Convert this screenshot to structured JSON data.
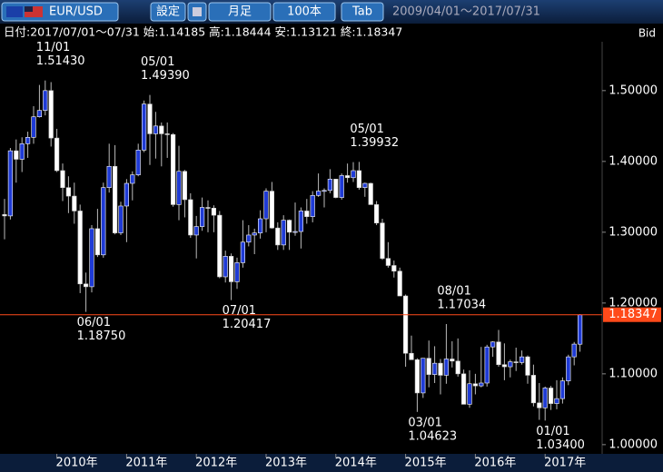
{
  "header": {
    "symbol": "EUR/USD",
    "buttons": [
      "設定",
      "月足",
      "100本",
      "Tab"
    ],
    "range": "2009/04/01～2017/07/31"
  },
  "info": "日付:2017/07/01～07/31 始:1.14185 高:1.18444 安:1.13121 終:1.18347",
  "price_side": "Bid",
  "chart_data": {
    "type": "candlestick",
    "ylim": [
      0.987,
      1.569
    ],
    "yticks": [
      {
        "value": 1.0,
        "label": "1.00000"
      },
      {
        "value": 1.1,
        "label": "1.10000"
      },
      {
        "value": 1.2,
        "label": "1.20000"
      },
      {
        "value": 1.3,
        "label": "1.30000"
      },
      {
        "value": 1.4,
        "label": "1.40000"
      },
      {
        "value": 1.5,
        "label": "1.50000"
      }
    ],
    "xticks": [
      "2010年",
      "2011年",
      "2012年",
      "2013年",
      "2014年",
      "2015年",
      "2016年",
      "2017年"
    ],
    "up_color": "#1f3bd6",
    "down_color": "#ffffff",
    "last": {
      "value": 1.18347,
      "label": "1.18347",
      "color": "#ff4a1a"
    },
    "annotations": [
      {
        "text": "11/01",
        "value": 1.5143,
        "label": "1.51430",
        "at": "high"
      },
      {
        "text": "05/01",
        "value": 1.4939,
        "label": "1.49390",
        "at": "high"
      },
      {
        "text": "06/01",
        "value": 1.1875,
        "label": "1.18750",
        "at": "low"
      },
      {
        "text": "07/01",
        "value": 1.20417,
        "label": "1.20417",
        "at": "low"
      },
      {
        "text": "05/01",
        "value": 1.39932,
        "label": "1.39932",
        "at": "high"
      },
      {
        "text": "03/01",
        "value": 1.04623,
        "label": "1.04623",
        "at": "low"
      },
      {
        "text": "08/01",
        "value": 1.17034,
        "label": "1.17034",
        "at": "high"
      },
      {
        "text": "01/01",
        "value": 1.034,
        "label": "1.03400",
        "at": "low"
      }
    ],
    "ohlc": [
      [
        1.325,
        1.347,
        1.29,
        1.323
      ],
      [
        1.323,
        1.419,
        1.318,
        1.415
      ],
      [
        1.415,
        1.431,
        1.37,
        1.403
      ],
      [
        1.403,
        1.434,
        1.385,
        1.425
      ],
      [
        1.425,
        1.442,
        1.405,
        1.434
      ],
      [
        1.434,
        1.478,
        1.425,
        1.463
      ],
      [
        1.463,
        1.508,
        1.462,
        1.472
      ],
      [
        1.472,
        1.5143,
        1.465,
        1.5
      ],
      [
        1.5,
        1.512,
        1.421,
        1.433
      ],
      [
        1.433,
        1.446,
        1.385,
        1.387
      ],
      [
        1.387,
        1.397,
        1.344,
        1.363
      ],
      [
        1.363,
        1.379,
        1.327,
        1.351
      ],
      [
        1.351,
        1.37,
        1.312,
        1.33
      ],
      [
        1.33,
        1.339,
        1.214,
        1.227
      ],
      [
        1.227,
        1.243,
        1.1875,
        1.223
      ],
      [
        1.223,
        1.31,
        1.215,
        1.305
      ],
      [
        1.305,
        1.333,
        1.265,
        1.268
      ],
      [
        1.268,
        1.37,
        1.264,
        1.363
      ],
      [
        1.363,
        1.425,
        1.356,
        1.393
      ],
      [
        1.393,
        1.423,
        1.297,
        1.299
      ],
      [
        1.299,
        1.343,
        1.296,
        1.337
      ],
      [
        1.337,
        1.375,
        1.286,
        1.369
      ],
      [
        1.369,
        1.386,
        1.345,
        1.381
      ],
      [
        1.381,
        1.425,
        1.379,
        1.416
      ],
      [
        1.416,
        1.486,
        1.413,
        1.481
      ],
      [
        1.481,
        1.4939,
        1.395,
        1.439
      ],
      [
        1.439,
        1.47,
        1.404,
        1.45
      ],
      [
        1.45,
        1.455,
        1.393,
        1.439
      ],
      [
        1.439,
        1.455,
        1.405,
        1.438
      ],
      [
        1.438,
        1.44,
        1.336,
        1.339
      ],
      [
        1.339,
        1.422,
        1.317,
        1.386
      ],
      [
        1.386,
        1.388,
        1.321,
        1.346
      ],
      [
        1.346,
        1.355,
        1.292,
        1.296
      ],
      [
        1.296,
        1.323,
        1.263,
        1.308
      ],
      [
        1.308,
        1.349,
        1.302,
        1.335
      ],
      [
        1.335,
        1.345,
        1.3,
        1.334
      ],
      [
        1.334,
        1.338,
        1.3,
        1.324
      ],
      [
        1.324,
        1.33,
        1.235,
        1.237
      ],
      [
        1.237,
        1.274,
        1.229,
        1.266
      ],
      [
        1.266,
        1.27,
        1.20417,
        1.23
      ],
      [
        1.23,
        1.264,
        1.22,
        1.257
      ],
      [
        1.257,
        1.317,
        1.25,
        1.286
      ],
      [
        1.286,
        1.31,
        1.28,
        1.296
      ],
      [
        1.296,
        1.305,
        1.269,
        1.299
      ],
      [
        1.299,
        1.331,
        1.291,
        1.319
      ],
      [
        1.319,
        1.362,
        1.3,
        1.358
      ],
      [
        1.358,
        1.371,
        1.305,
        1.306
      ],
      [
        1.306,
        1.314,
        1.275,
        1.282
      ],
      [
        1.282,
        1.324,
        1.275,
        1.317
      ],
      [
        1.317,
        1.318,
        1.275,
        1.3
      ],
      [
        1.3,
        1.342,
        1.295,
        1.301
      ],
      [
        1.301,
        1.335,
        1.277,
        1.33
      ],
      [
        1.33,
        1.347,
        1.312,
        1.322
      ],
      [
        1.322,
        1.358,
        1.314,
        1.352
      ],
      [
        1.352,
        1.383,
        1.35,
        1.358
      ],
      [
        1.358,
        1.362,
        1.335,
        1.359
      ],
      [
        1.359,
        1.389,
        1.355,
        1.375
      ],
      [
        1.375,
        1.375,
        1.348,
        1.349
      ],
      [
        1.349,
        1.383,
        1.346,
        1.38
      ],
      [
        1.38,
        1.397,
        1.37,
        1.377
      ],
      [
        1.377,
        1.399,
        1.371,
        1.387
      ],
      [
        1.387,
        1.39932,
        1.36,
        1.363
      ],
      [
        1.363,
        1.37,
        1.35,
        1.369
      ],
      [
        1.369,
        1.37,
        1.339,
        1.339
      ],
      [
        1.339,
        1.344,
        1.31,
        1.313
      ],
      [
        1.313,
        1.319,
        1.261,
        1.263
      ],
      [
        1.263,
        1.286,
        1.25,
        1.253
      ],
      [
        1.253,
        1.26,
        1.236,
        1.245
      ],
      [
        1.245,
        1.25,
        1.21,
        1.21
      ],
      [
        1.21,
        1.212,
        1.11,
        1.129
      ],
      [
        1.129,
        1.154,
        1.12,
        1.12
      ],
      [
        1.12,
        1.122,
        1.04623,
        1.073
      ],
      [
        1.073,
        1.122,
        1.066,
        1.122
      ],
      [
        1.122,
        1.147,
        1.081,
        1.099
      ],
      [
        1.099,
        1.139,
        1.087,
        1.115
      ],
      [
        1.115,
        1.121,
        1.071,
        1.098
      ],
      [
        1.098,
        1.17034,
        1.086,
        1.121
      ],
      [
        1.121,
        1.146,
        1.109,
        1.118
      ],
      [
        1.118,
        1.15,
        1.096,
        1.1
      ],
      [
        1.1,
        1.106,
        1.057,
        1.057
      ],
      [
        1.057,
        1.105,
        1.052,
        1.086
      ],
      [
        1.086,
        1.1,
        1.071,
        1.083
      ],
      [
        1.083,
        1.138,
        1.081,
        1.087
      ],
      [
        1.087,
        1.141,
        1.082,
        1.138
      ],
      [
        1.138,
        1.146,
        1.124,
        1.145
      ],
      [
        1.145,
        1.162,
        1.11,
        1.113
      ],
      [
        1.113,
        1.143,
        1.091,
        1.11
      ],
      [
        1.11,
        1.12,
        1.095,
        1.117
      ],
      [
        1.117,
        1.137,
        1.104,
        1.116
      ],
      [
        1.116,
        1.133,
        1.113,
        1.124
      ],
      [
        1.124,
        1.126,
        1.086,
        1.098
      ],
      [
        1.098,
        1.113,
        1.054,
        1.059
      ],
      [
        1.059,
        1.087,
        1.035,
        1.052
      ],
      [
        1.052,
        1.082,
        1.034,
        1.08
      ],
      [
        1.08,
        1.083,
        1.049,
        1.058
      ],
      [
        1.058,
        1.091,
        1.05,
        1.065
      ],
      [
        1.065,
        1.095,
        1.058,
        1.09
      ],
      [
        1.09,
        1.127,
        1.084,
        1.124
      ],
      [
        1.124,
        1.145,
        1.112,
        1.142
      ],
      [
        1.14185,
        1.18444,
        1.13121,
        1.18347
      ]
    ]
  }
}
